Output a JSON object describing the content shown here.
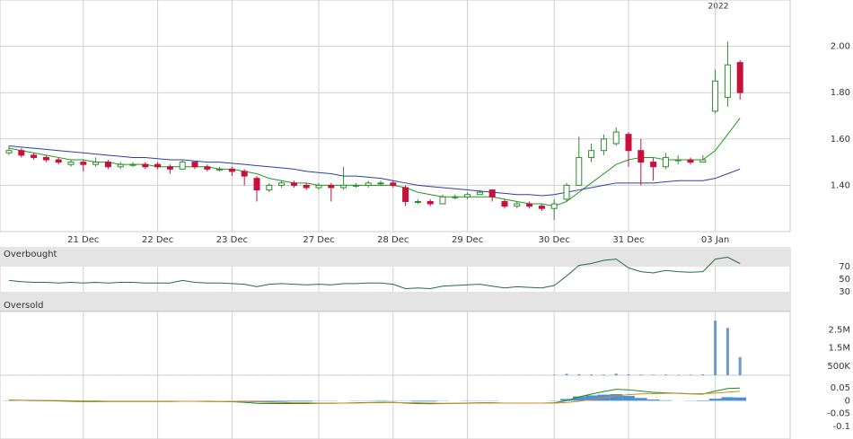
{
  "chart_data": [
    {
      "type": "candlestick",
      "annotation": "2022",
      "categories": [
        null,
        null,
        null,
        null,
        null,
        null,
        "21 Dec",
        null,
        null,
        null,
        null,
        null,
        "22 Dec",
        null,
        null,
        null,
        null,
        null,
        "23 Dec",
        null,
        null,
        null,
        null,
        null,
        null,
        "27 Dec",
        null,
        null,
        null,
        null,
        null,
        "28 Dec",
        null,
        null,
        null,
        null,
        null,
        "29 Dec",
        null,
        null,
        null,
        null,
        null,
        null,
        "30 Dec",
        null,
        null,
        null,
        null,
        null,
        "31 Dec",
        null,
        null,
        null,
        null,
        null,
        null,
        "03 Jan",
        null,
        null
      ],
      "candles": [
        [
          1.54,
          1.57,
          1.53,
          1.55
        ],
        [
          1.55,
          1.56,
          1.52,
          1.53
        ],
        [
          1.53,
          1.54,
          1.51,
          1.52
        ],
        [
          1.52,
          1.53,
          1.5,
          1.51
        ],
        [
          1.51,
          1.52,
          1.49,
          1.5
        ],
        [
          1.49,
          1.51,
          1.48,
          1.5
        ],
        [
          1.5,
          1.51,
          1.46,
          1.49
        ],
        [
          1.49,
          1.52,
          1.48,
          1.5
        ],
        [
          1.5,
          1.51,
          1.47,
          1.48
        ],
        [
          1.48,
          1.5,
          1.47,
          1.49
        ],
        [
          1.49,
          1.5,
          1.48,
          1.49
        ],
        [
          1.49,
          1.5,
          1.47,
          1.48
        ],
        [
          1.49,
          1.5,
          1.47,
          1.48
        ],
        [
          1.48,
          1.49,
          1.45,
          1.47
        ],
        [
          1.47,
          1.51,
          1.47,
          1.5
        ],
        [
          1.5,
          1.5,
          1.47,
          1.48
        ],
        [
          1.48,
          1.49,
          1.46,
          1.47
        ],
        [
          1.47,
          1.48,
          1.46,
          1.47
        ],
        [
          1.47,
          1.48,
          1.44,
          1.46
        ],
        [
          1.46,
          1.47,
          1.4,
          1.44
        ],
        [
          1.43,
          1.44,
          1.33,
          1.38
        ],
        [
          1.38,
          1.41,
          1.37,
          1.4
        ],
        [
          1.4,
          1.42,
          1.39,
          1.41
        ],
        [
          1.41,
          1.42,
          1.39,
          1.4
        ],
        [
          1.4,
          1.41,
          1.38,
          1.39
        ],
        [
          1.39,
          1.41,
          1.38,
          1.4
        ],
        [
          1.4,
          1.41,
          1.33,
          1.39
        ],
        [
          1.39,
          1.48,
          1.38,
          1.4
        ],
        [
          1.4,
          1.41,
          1.39,
          1.4
        ],
        [
          1.4,
          1.42,
          1.39,
          1.41
        ],
        [
          1.41,
          1.42,
          1.4,
          1.41
        ],
        [
          1.41,
          1.42,
          1.39,
          1.4
        ],
        [
          1.39,
          1.4,
          1.31,
          1.33
        ],
        [
          1.33,
          1.34,
          1.32,
          1.33
        ],
        [
          1.33,
          1.34,
          1.31,
          1.32
        ],
        [
          1.32,
          1.36,
          1.32,
          1.35
        ],
        [
          1.35,
          1.36,
          1.34,
          1.35
        ],
        [
          1.35,
          1.37,
          1.34,
          1.36
        ],
        [
          1.36,
          1.38,
          1.36,
          1.37
        ],
        [
          1.38,
          1.38,
          1.33,
          1.35
        ],
        [
          1.33,
          1.34,
          1.3,
          1.31
        ],
        [
          1.31,
          1.33,
          1.3,
          1.32
        ],
        [
          1.32,
          1.33,
          1.3,
          1.31
        ],
        [
          1.31,
          1.32,
          1.29,
          1.3
        ],
        [
          1.3,
          1.34,
          1.25,
          1.32
        ],
        [
          1.34,
          1.41,
          1.33,
          1.4
        ],
        [
          1.4,
          1.61,
          1.4,
          1.52
        ],
        [
          1.52,
          1.58,
          1.5,
          1.55
        ],
        [
          1.55,
          1.62,
          1.53,
          1.6
        ],
        [
          1.58,
          1.65,
          1.57,
          1.63
        ],
        [
          1.62,
          1.63,
          1.48,
          1.55
        ],
        [
          1.55,
          1.6,
          1.4,
          1.5
        ],
        [
          1.5,
          1.52,
          1.42,
          1.48
        ],
        [
          1.48,
          1.54,
          1.47,
          1.52
        ],
        [
          1.51,
          1.53,
          1.49,
          1.51
        ],
        [
          1.51,
          1.52,
          1.49,
          1.5
        ],
        [
          1.5,
          1.53,
          1.5,
          1.51
        ],
        [
          1.72,
          1.9,
          1.71,
          1.85
        ],
        [
          1.78,
          2.02,
          1.74,
          1.92
        ],
        [
          1.93,
          1.94,
          1.77,
          1.8
        ]
      ],
      "up_color": "#2e8b2e",
      "down_color": "#c8103c",
      "overlays": [
        {
          "color": "#1e9a1e",
          "values": [
            1.56,
            1.55,
            1.54,
            1.53,
            1.52,
            1.51,
            1.51,
            1.5,
            1.5,
            1.49,
            1.49,
            1.49,
            1.48,
            1.48,
            1.48,
            1.48,
            1.48,
            1.47,
            1.47,
            1.46,
            1.45,
            1.43,
            1.42,
            1.41,
            1.41,
            1.4,
            1.4,
            1.4,
            1.4,
            1.4,
            1.4,
            1.4,
            1.39,
            1.37,
            1.36,
            1.35,
            1.35,
            1.35,
            1.35,
            1.35,
            1.34,
            1.33,
            1.32,
            1.32,
            1.31,
            1.33,
            1.37,
            1.41,
            1.45,
            1.49,
            1.51,
            1.52,
            1.52,
            1.51,
            1.51,
            1.51,
            1.51,
            1.55,
            1.62,
            1.69
          ]
        },
        {
          "color": "#2d3fa6",
          "values": [
            1.57,
            1.565,
            1.56,
            1.555,
            1.55,
            1.545,
            1.54,
            1.535,
            1.53,
            1.525,
            1.52,
            1.52,
            1.515,
            1.51,
            1.51,
            1.505,
            1.5,
            1.5,
            1.495,
            1.49,
            1.485,
            1.48,
            1.475,
            1.47,
            1.46,
            1.455,
            1.45,
            1.44,
            1.44,
            1.435,
            1.43,
            1.42,
            1.41,
            1.4,
            1.395,
            1.39,
            1.385,
            1.38,
            1.375,
            1.37,
            1.365,
            1.36,
            1.36,
            1.355,
            1.36,
            1.37,
            1.38,
            1.39,
            1.4,
            1.41,
            1.41,
            1.41,
            1.41,
            1.415,
            1.42,
            1.42,
            1.42,
            1.43,
            1.45,
            1.47
          ]
        }
      ],
      "ylim": [
        1.2,
        2.2
      ],
      "yticks": [
        {
          "value": 1.4,
          "label": "1.40"
        },
        {
          "value": 1.6,
          "label": "1.60"
        },
        {
          "value": 1.8,
          "label": "1.80"
        },
        {
          "value": 2,
          "label": "2.00"
        }
      ],
      "grid": true
    },
    {
      "type": "line",
      "color": "#2a6a48",
      "bands": [
        {
          "label": "Overbought",
          "from": 70,
          "to": 100
        },
        {
          "label": "Oversold",
          "from": 0,
          "to": 30
        }
      ],
      "values": [
        48,
        46,
        45,
        45,
        44,
        45,
        44,
        45,
        44,
        45,
        45,
        44,
        44,
        44,
        48,
        45,
        44,
        44,
        43,
        42,
        38,
        42,
        43,
        42,
        41,
        42,
        41,
        43,
        43,
        44,
        44,
        42,
        35,
        36,
        35,
        39,
        40,
        41,
        42,
        39,
        36,
        38,
        37,
        36,
        40,
        55,
        72,
        75,
        80,
        82,
        68,
        62,
        60,
        64,
        62,
        61,
        62,
        82,
        85,
        75
      ],
      "ylim": [
        0,
        100
      ],
      "yticks": [
        30,
        50,
        70
      ]
    },
    {
      "type": "bar",
      "color": "#6a9ad6",
      "values": [
        5000,
        4000,
        6000,
        5000,
        4000,
        5000,
        6000,
        5000,
        4000,
        5000,
        4000,
        5000,
        6000,
        5000,
        4000,
        5000,
        4000,
        5000,
        6000,
        8000,
        9000,
        5000,
        4000,
        5000,
        4000,
        5000,
        6000,
        7000,
        5000,
        4000,
        5000,
        4000,
        8000,
        6000,
        5000,
        4000,
        5000,
        4000,
        5000,
        6000,
        7000,
        5000,
        4000,
        5000,
        30000,
        80000,
        60000,
        50000,
        40000,
        90000,
        50000,
        40000,
        30000,
        40000,
        30000,
        30000,
        50000,
        3000000,
        2600000,
        1000000
      ],
      "ylim": [
        0,
        3500000
      ],
      "yticks": [
        {
          "value": 500000,
          "label": "500K"
        },
        {
          "value": 1500000,
          "label": "1.5M"
        },
        {
          "value": 2500000,
          "label": "2.5M"
        }
      ]
    },
    {
      "type": "macd",
      "macd_color": "#1e8a1e",
      "signal_color": "#d08a28",
      "hist_color": "#4d8fd4",
      "macd": [
        0.003,
        0.002,
        0.001,
        0,
        -0.001,
        -0.002,
        -0.003,
        -0.003,
        -0.003,
        -0.003,
        -0.003,
        -0.003,
        -0.003,
        -0.003,
        -0.002,
        -0.002,
        -0.003,
        -0.003,
        -0.004,
        -0.006,
        -0.01,
        -0.011,
        -0.011,
        -0.011,
        -0.011,
        -0.01,
        -0.01,
        -0.009,
        -0.008,
        -0.007,
        -0.006,
        -0.006,
        -0.009,
        -0.011,
        -0.012,
        -0.011,
        -0.01,
        -0.009,
        -0.008,
        -0.008,
        -0.009,
        -0.009,
        -0.009,
        -0.009,
        -0.008,
        0,
        0.015,
        0.026,
        0.036,
        0.045,
        0.043,
        0.038,
        0.033,
        0.031,
        0.029,
        0.027,
        0.026,
        0.038,
        0.048,
        0.05
      ],
      "signal": [
        0.002,
        0.002,
        0.002,
        0.001,
        0.001,
        0,
        -0.001,
        -0.001,
        -0.002,
        -0.002,
        -0.002,
        -0.002,
        -0.002,
        -0.002,
        -0.002,
        -0.002,
        -0.002,
        -0.003,
        -0.003,
        -0.003,
        -0.004,
        -0.006,
        -0.007,
        -0.008,
        -0.008,
        -0.009,
        -0.009,
        -0.009,
        -0.009,
        -0.008,
        -0.008,
        -0.007,
        -0.008,
        -0.008,
        -0.009,
        -0.01,
        -0.01,
        -0.01,
        -0.009,
        -0.009,
        -0.009,
        -0.009,
        -0.009,
        -0.009,
        -0.009,
        -0.007,
        -0.002,
        0.005,
        0.012,
        0.019,
        0.024,
        0.027,
        0.028,
        0.029,
        0.029,
        0.028,
        0.028,
        0.03,
        0.034,
        0.037
      ],
      "histogram": [
        0.001,
        0,
        -0.001,
        -0.001,
        -0.002,
        -0.002,
        -0.002,
        -0.002,
        -0.001,
        -0.001,
        -0.001,
        -0.001,
        -0.001,
        -0.001,
        0,
        0,
        -0.001,
        0,
        -0.001,
        -0.003,
        -0.006,
        -0.005,
        -0.004,
        -0.003,
        -0.003,
        -0.001,
        -0.001,
        0,
        0.001,
        0.001,
        0.002,
        0.001,
        -0.001,
        -0.003,
        -0.003,
        -0.001,
        0,
        0.001,
        0.001,
        0.001,
        0,
        0,
        0,
        0,
        0.001,
        0.007,
        0.017,
        0.021,
        0.024,
        0.026,
        0.019,
        0.011,
        0.005,
        0.002,
        0,
        -0.001,
        -0.002,
        0.008,
        0.014,
        0.013
      ],
      "ylim": [
        -0.15,
        0.1
      ],
      "yticks": [
        -0.1,
        -0.05,
        0,
        0.05
      ]
    }
  ]
}
